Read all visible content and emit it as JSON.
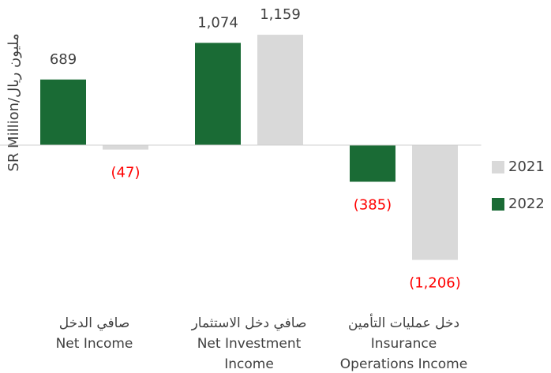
{
  "chart_data": {
    "type": "bar",
    "y_label": "SR Million/مليون ريال",
    "categories": [
      [
        "صافي الدخل",
        "Net Income"
      ],
      [
        "صافي دخل الاستثمار",
        "Net Investment",
        "Income"
      ],
      [
        "دخل عمليات التأمين",
        "Insurance",
        "Operations Income"
      ]
    ],
    "series": [
      {
        "name": "2022",
        "color": "#1a6b35",
        "values": [
          689,
          1074,
          -385
        ],
        "value_labels": [
          "689",
          "1,074",
          "(385)"
        ]
      },
      {
        "name": "2021",
        "color": "#d9d9d9",
        "values": [
          -47,
          1159,
          -1206
        ],
        "value_labels": [
          "(47)",
          "1,159",
          "(1,206)"
        ]
      }
    ],
    "ylim": [
      -1400,
      1400
    ],
    "negative_label_color": "#ff0000",
    "legend": "right"
  }
}
